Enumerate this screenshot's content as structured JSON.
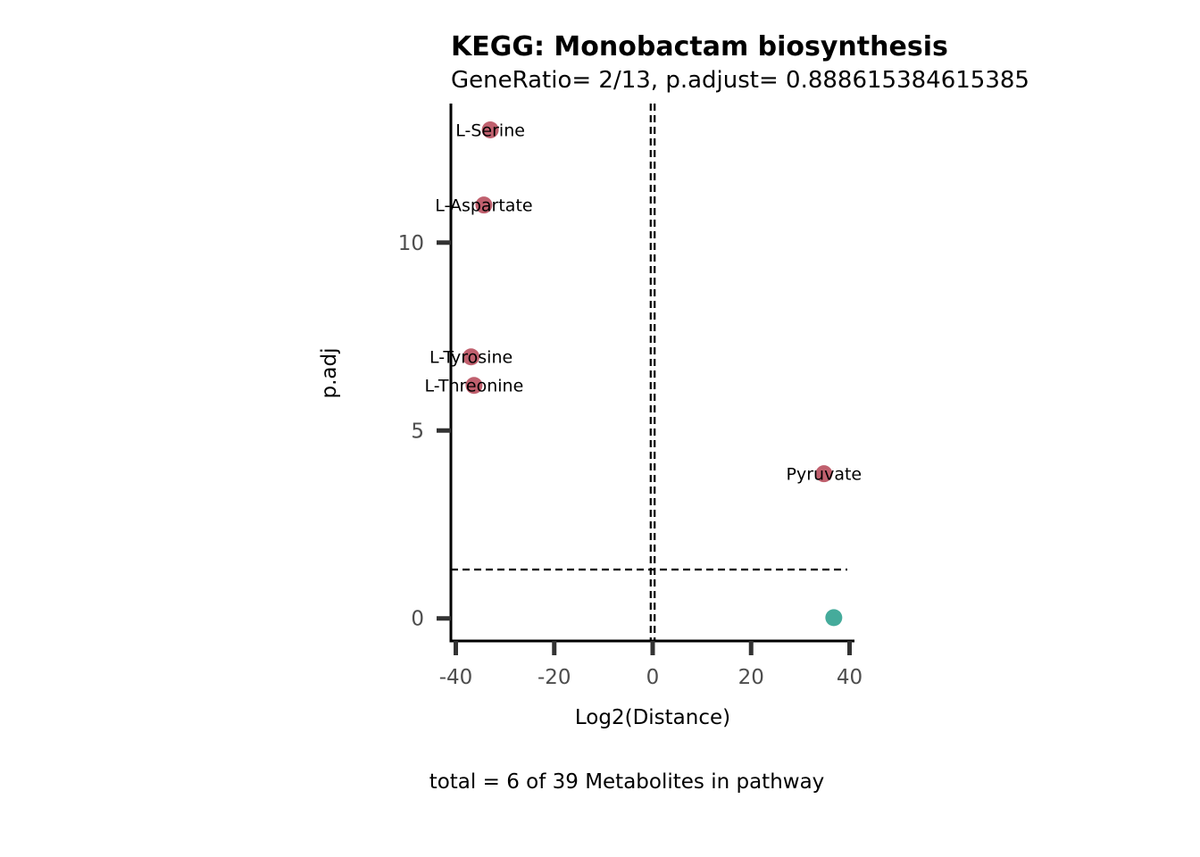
{
  "chart_data": {
    "type": "scatter",
    "title": "KEGG: Monobactam biosynthesis",
    "subtitle": "GeneRatio= 2/13, p.adjust= 0.888615384615385",
    "xlabel": "Log2(Distance)",
    "ylabel": "p.adj",
    "caption": "total = 6 of 39 Metabolites in pathway",
    "xlim": [
      -41,
      41
    ],
    "ylim": [
      -0.6,
      13.7
    ],
    "xticks": [
      -40,
      -20,
      0,
      20,
      40
    ],
    "xtick_labels": [
      "-40",
      "-20",
      "0",
      "20",
      "40"
    ],
    "yticks": [
      0,
      5,
      10
    ],
    "ytick_labels": [
      "0",
      "5",
      "10"
    ],
    "reference_lines": {
      "vertical": [
        -0.4,
        0.4
      ],
      "horizontal": [
        1.3
      ]
    },
    "grid": false,
    "legend": "none",
    "colors": {
      "significant": "#c0606e",
      "not_significant": "#45ab9b"
    },
    "points": [
      {
        "label": "L-Serine",
        "x": -33,
        "y": 13.0,
        "group": "significant"
      },
      {
        "label": "L-Aspartate",
        "x": -34.3,
        "y": 11.0,
        "group": "significant"
      },
      {
        "label": "L-Tyrosine",
        "x": -36.9,
        "y": 6.96,
        "group": "significant"
      },
      {
        "label": "L-Threonine",
        "x": -36.3,
        "y": 6.2,
        "group": "significant"
      },
      {
        "label": "Pyruvate",
        "x": 34.8,
        "y": 3.85,
        "group": "significant"
      },
      {
        "label": "",
        "x": 36.8,
        "y": 0.02,
        "group": "not_significant"
      }
    ]
  }
}
